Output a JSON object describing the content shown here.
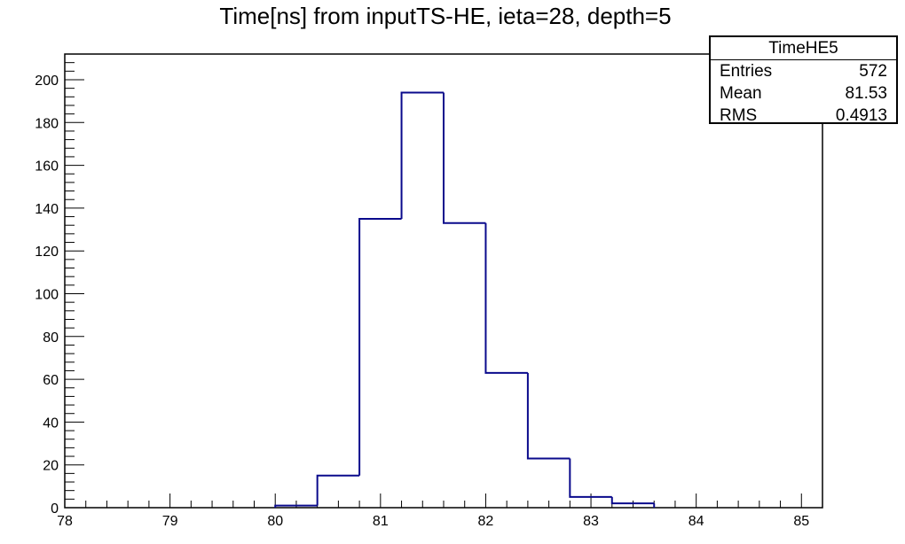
{
  "chart_data": {
    "type": "histogram",
    "title": "Time[ns] from inputTS-HE, ieta=28, depth=5",
    "xlim": [
      78,
      85.2
    ],
    "ylim": [
      0,
      212
    ],
    "x_ticks": [
      "78",
      "79",
      "80",
      "81",
      "82",
      "83",
      "84",
      "85"
    ],
    "y_ticks": [
      "0",
      "20",
      "40",
      "60",
      "80",
      "100",
      "120",
      "140",
      "160",
      "180",
      "200"
    ],
    "bins": [
      {
        "x0": 80.0,
        "x1": 80.4,
        "count": 1
      },
      {
        "x0": 80.4,
        "x1": 80.8,
        "count": 15
      },
      {
        "x0": 80.8,
        "x1": 81.2,
        "count": 135
      },
      {
        "x0": 81.2,
        "x1": 81.6,
        "count": 194
      },
      {
        "x0": 81.6,
        "x1": 82.0,
        "count": 133
      },
      {
        "x0": 82.0,
        "x1": 82.4,
        "count": 63
      },
      {
        "x0": 82.4,
        "x1": 82.8,
        "count": 23
      },
      {
        "x0": 82.8,
        "x1": 83.2,
        "count": 5
      },
      {
        "x0": 83.2,
        "x1": 83.6,
        "count": 2
      }
    ],
    "line_color": "#0a0a8c",
    "grid": false
  },
  "stats": {
    "name": "TimeHE5",
    "rows": [
      {
        "label": "Entries",
        "value": "572"
      },
      {
        "label": "Mean",
        "value": "81.53"
      },
      {
        "label": "RMS",
        "value": "0.4913"
      }
    ]
  }
}
